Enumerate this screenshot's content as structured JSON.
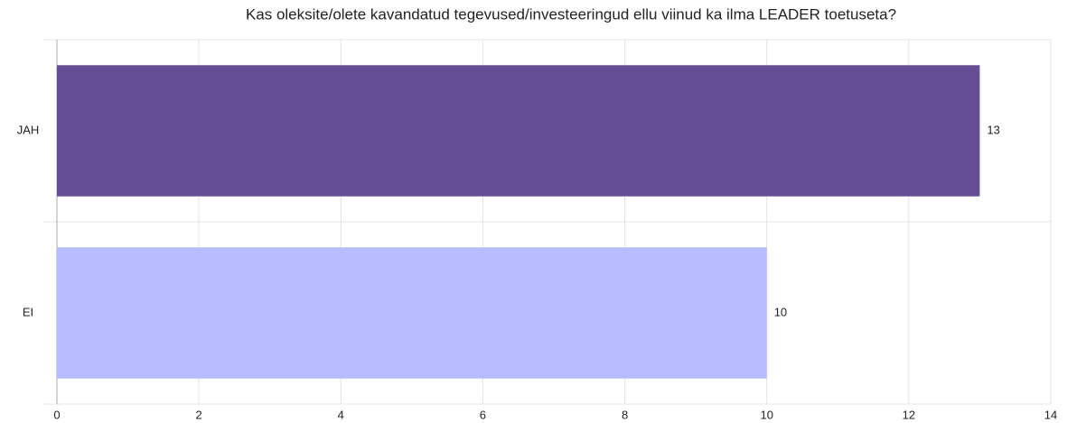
{
  "chart_data": {
    "type": "bar",
    "orientation": "horizontal",
    "title": "Kas oleksite/olete kavandatud tegevused/investeeringud ellu viinud ka ilma LEADER toetuseta?",
    "categories": [
      "JAH",
      "EI"
    ],
    "values": [
      13,
      10
    ],
    "colors": [
      "#654f94",
      "#b6bcfc"
    ],
    "xlim": [
      0,
      14
    ],
    "xticks": [
      0,
      2,
      4,
      6,
      8,
      10,
      12,
      14
    ],
    "grid": true
  }
}
